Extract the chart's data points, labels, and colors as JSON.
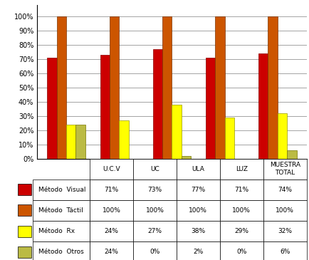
{
  "categories": [
    "U.C.V",
    "UC",
    "ULA",
    "LUZ",
    "MUESTRA\nTOTAL"
  ],
  "series": [
    {
      "name": "Método  Visual",
      "color": "#CC0000",
      "edge": "#8B0000",
      "values": [
        71,
        73,
        77,
        71,
        74
      ]
    },
    {
      "name": "Método  Táctil",
      "color": "#CC5500",
      "edge": "#7B3500",
      "values": [
        100,
        100,
        100,
        100,
        100
      ]
    },
    {
      "name": "Método  Rx",
      "color": "#FFFF00",
      "edge": "#999900",
      "values": [
        24,
        27,
        38,
        29,
        32
      ]
    },
    {
      "name": "Método  Otros",
      "color": "#BBBB44",
      "edge": "#777700",
      "values": [
        24,
        0,
        2,
        0,
        6
      ]
    }
  ],
  "ylim": [
    0,
    108
  ],
  "yticks": [
    0,
    10,
    20,
    30,
    40,
    50,
    60,
    70,
    80,
    90,
    100
  ],
  "ytick_labels": [
    "0%",
    "10%",
    "20%",
    "30%",
    "40%",
    "50%",
    "60%",
    "70%",
    "80%",
    "90%",
    "100%"
  ],
  "background_color": "#FFFFFF",
  "table_col_labels": [
    "U.C.V",
    "UC",
    "ULA",
    "LUZ",
    "MUESTRA\nTOTAL"
  ],
  "table_rows": [
    [
      "71%",
      "73%",
      "77%",
      "71%",
      "74%"
    ],
    [
      "100%",
      "100%",
      "100%",
      "100%",
      "100%"
    ],
    [
      "24%",
      "27%",
      "38%",
      "29%",
      "32%"
    ],
    [
      "24%",
      "0%",
      "2%",
      "0%",
      "6%"
    ]
  ],
  "legend_colors": [
    "#CC0000",
    "#CC5500",
    "#FFFF00",
    "#BBBB44"
  ],
  "legend_labels": [
    "Método  Visual",
    "Método  Táctil",
    "Método  Rx",
    "Método  Otros"
  ]
}
